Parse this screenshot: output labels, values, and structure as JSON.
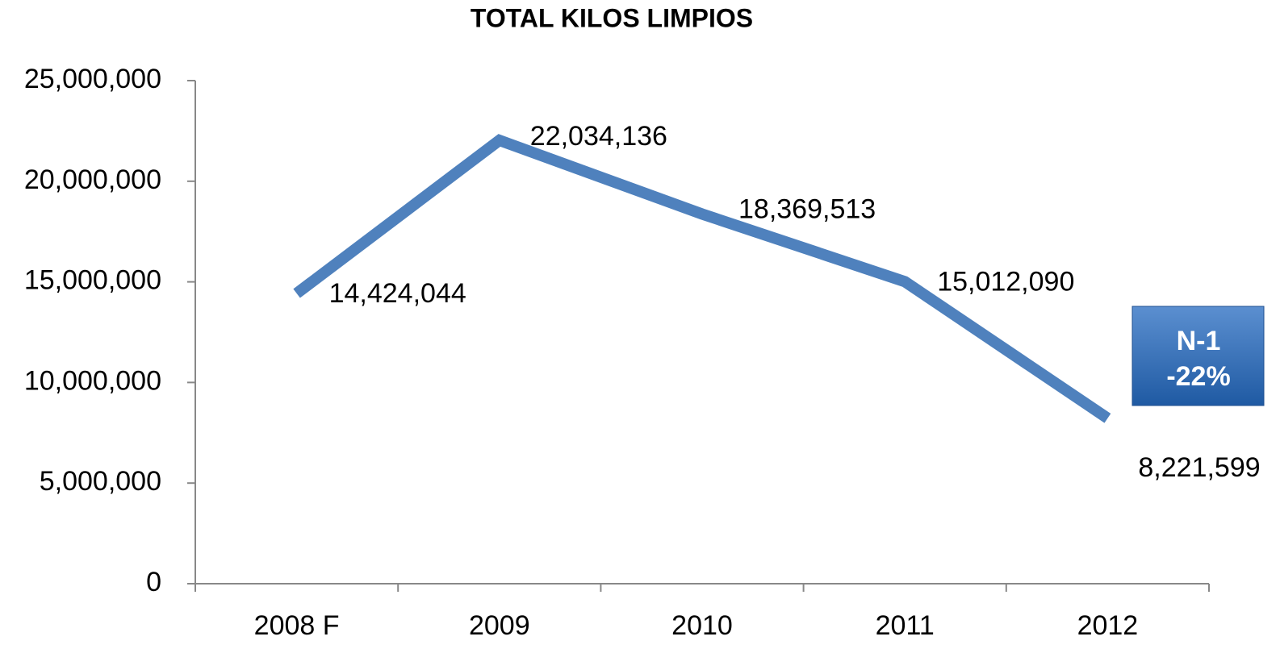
{
  "chart_data": {
    "type": "line",
    "title": "TOTAL KILOS LIMPIOS",
    "categories": [
      "2008 F",
      "2009",
      "2010",
      "2011",
      "2012"
    ],
    "series": [
      {
        "color": "#4f81bd",
        "values": [
          14424044,
          22034136,
          18369513,
          15012090,
          8221599
        ],
        "value_labels": [
          "14,424,044",
          "22,034,136",
          "18,369,513",
          "15,012,090",
          "8,221,599"
        ]
      }
    ],
    "ylim": [
      0,
      25000000
    ],
    "yticks": [
      0,
      {
        "value": 5000000,
        "label": "5,000,000"
      },
      {
        "value": 10000000,
        "label": "10,000,000"
      },
      {
        "value": 15000000,
        "label": "15,000,000"
      },
      {
        "value": 20000000,
        "label": "20,000,000"
      },
      {
        "value": 25000000,
        "label": "25,000,000"
      }
    ],
    "annotations": [
      "N-1",
      "-22%"
    ]
  }
}
